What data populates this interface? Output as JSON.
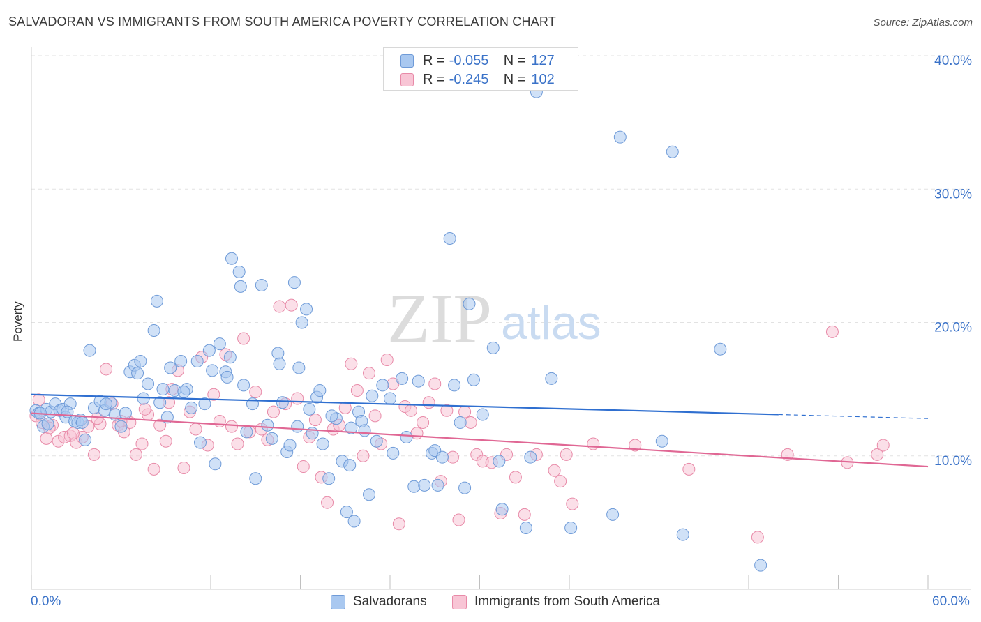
{
  "header": {
    "title": "SALVADORAN VS IMMIGRANTS FROM SOUTH AMERICA POVERTY CORRELATION CHART",
    "source": "Source: ZipAtlas.com"
  },
  "watermark": {
    "zip": "ZIP",
    "atlas": "atlas"
  },
  "legend": {
    "rows": [
      {
        "r_label": "R =",
        "r_value": "-0.055",
        "n_label": "N =",
        "n_value": "127",
        "color": "#a9c8f0",
        "border": "#6f9bd8"
      },
      {
        "r_label": "R =",
        "r_value": "-0.245",
        "n_label": "N =",
        "n_value": "102",
        "color": "#f8c5d5",
        "border": "#e88aa8"
      }
    ]
  },
  "bottom_legend": [
    {
      "label": "Salvadorans",
      "color": "#a9c8f0",
      "border": "#6f9bd8"
    },
    {
      "label": "Immigrants from South America",
      "color": "#f8c5d5",
      "border": "#e88aa8"
    }
  ],
  "chart_data": {
    "type": "scatter",
    "title": "SALVADORAN VS IMMIGRANTS FROM SOUTH AMERICA POVERTY CORRELATION CHART",
    "xlabel": "",
    "ylabel": "Poverty",
    "xlim": [
      0,
      60
    ],
    "ylim": [
      0,
      40
    ],
    "x_tick_labels": [
      "0.0%",
      "60.0%"
    ],
    "y_ticks": [
      10,
      20,
      30,
      40
    ],
    "y_tick_labels": [
      "10.0%",
      "20.0%",
      "30.0%",
      "40.0%"
    ],
    "grid": true,
    "legend_placement": "top-center",
    "series": [
      {
        "name": "Salvadorans",
        "color": "#6f9bd8",
        "fill": "#a9c8f0",
        "trend": {
          "x": [
            0,
            50,
            60
          ],
          "y": [
            14.6,
            13.1,
            12.8
          ],
          "solid_until": 50
        },
        "points": [
          [
            0.3,
            13.4
          ],
          [
            0.5,
            13.2
          ],
          [
            0.8,
            12.2
          ],
          [
            1.0,
            13.5
          ],
          [
            1.3,
            13.3
          ],
          [
            1.6,
            13.9
          ],
          [
            1.9,
            13.4
          ],
          [
            2.1,
            13.5
          ],
          [
            2.3,
            12.9
          ],
          [
            2.6,
            13.9
          ],
          [
            2.9,
            12.6
          ],
          [
            3.1,
            12.5
          ],
          [
            3.3,
            12.7
          ],
          [
            3.6,
            11.2
          ],
          [
            3.9,
            17.9
          ],
          [
            4.2,
            13.6
          ],
          [
            4.6,
            14.1
          ],
          [
            4.9,
            13.4
          ],
          [
            5.3,
            14.0
          ],
          [
            5.6,
            13.1
          ],
          [
            6.0,
            12.2
          ],
          [
            6.6,
            16.3
          ],
          [
            6.9,
            16.8
          ],
          [
            7.1,
            16.2
          ],
          [
            7.3,
            17.1
          ],
          [
            7.8,
            15.4
          ],
          [
            8.2,
            19.4
          ],
          [
            8.4,
            21.6
          ],
          [
            8.6,
            14.0
          ],
          [
            9.3,
            16.6
          ],
          [
            9.6,
            14.9
          ],
          [
            10.0,
            17.1
          ],
          [
            10.4,
            15.0
          ],
          [
            10.7,
            13.6
          ],
          [
            11.1,
            17.1
          ],
          [
            11.6,
            13.9
          ],
          [
            11.9,
            17.9
          ],
          [
            12.3,
            9.4
          ],
          [
            12.6,
            18.4
          ],
          [
            13.0,
            16.3
          ],
          [
            13.1,
            15.9
          ],
          [
            13.4,
            24.8
          ],
          [
            13.9,
            23.8
          ],
          [
            14.0,
            22.7
          ],
          [
            14.4,
            11.8
          ],
          [
            14.8,
            13.9
          ],
          [
            15.0,
            8.3
          ],
          [
            15.4,
            22.8
          ],
          [
            16.1,
            11.3
          ],
          [
            16.5,
            17.7
          ],
          [
            16.6,
            16.9
          ],
          [
            17.1,
            10.3
          ],
          [
            17.3,
            10.8
          ],
          [
            17.6,
            23.0
          ],
          [
            17.9,
            16.6
          ],
          [
            18.1,
            20.0
          ],
          [
            18.4,
            21.0
          ],
          [
            18.8,
            11.7
          ],
          [
            19.1,
            14.4
          ],
          [
            19.3,
            14.9
          ],
          [
            19.9,
            8.3
          ],
          [
            20.4,
            12.8
          ],
          [
            20.8,
            9.6
          ],
          [
            21.1,
            5.8
          ],
          [
            21.3,
            9.3
          ],
          [
            21.6,
            5.1
          ],
          [
            21.9,
            13.3
          ],
          [
            22.1,
            12.6
          ],
          [
            22.3,
            11.9
          ],
          [
            22.6,
            7.1
          ],
          [
            23.1,
            11.1
          ],
          [
            23.5,
            15.3
          ],
          [
            24.0,
            14.3
          ],
          [
            24.2,
            10.2
          ],
          [
            24.8,
            15.8
          ],
          [
            25.1,
            11.4
          ],
          [
            25.6,
            7.7
          ],
          [
            25.9,
            15.6
          ],
          [
            26.3,
            7.8
          ],
          [
            26.8,
            10.2
          ],
          [
            27.0,
            10.4
          ],
          [
            27.2,
            7.8
          ],
          [
            27.5,
            9.9
          ],
          [
            28.0,
            26.3
          ],
          [
            28.3,
            15.3
          ],
          [
            28.7,
            12.5
          ],
          [
            29.0,
            7.6
          ],
          [
            29.3,
            21.4
          ],
          [
            29.6,
            15.7
          ],
          [
            30.2,
            13.1
          ],
          [
            30.9,
            18.1
          ],
          [
            31.3,
            9.6
          ],
          [
            31.5,
            6.0
          ],
          [
            33.1,
            4.6
          ],
          [
            33.4,
            9.9
          ],
          [
            33.8,
            37.3
          ],
          [
            34.8,
            15.8
          ],
          [
            36.1,
            4.6
          ],
          [
            38.9,
            5.6
          ],
          [
            39.4,
            33.9
          ],
          [
            42.2,
            11.1
          ],
          [
            42.9,
            32.8
          ],
          [
            43.6,
            4.1
          ],
          [
            46.1,
            18.0
          ],
          [
            48.8,
            1.8
          ],
          [
            0.6,
            13.2
          ],
          [
            1.1,
            12.4
          ],
          [
            2.4,
            13.3
          ],
          [
            3.4,
            12.5
          ],
          [
            5.0,
            13.9
          ],
          [
            6.3,
            13.2
          ],
          [
            7.5,
            14.3
          ],
          [
            8.8,
            15.0
          ],
          [
            9.1,
            12.9
          ],
          [
            10.2,
            14.8
          ],
          [
            11.3,
            11.0
          ],
          [
            12.1,
            16.4
          ],
          [
            13.3,
            17.4
          ],
          [
            14.2,
            15.3
          ],
          [
            15.8,
            12.3
          ],
          [
            16.8,
            14.0
          ],
          [
            17.8,
            12.2
          ],
          [
            18.6,
            13.5
          ],
          [
            19.5,
            10.9
          ],
          [
            20.1,
            13.0
          ],
          [
            21.4,
            12.1
          ],
          [
            22.8,
            14.5
          ]
        ]
      },
      {
        "name": "Immigrants from South America",
        "color": "#e88aa8",
        "fill": "#f8c5d5",
        "trend": {
          "x": [
            0,
            60
          ],
          "y": [
            13.2,
            9.2
          ]
        },
        "points": [
          [
            0.3,
            13.0
          ],
          [
            0.7,
            12.5
          ],
          [
            1.0,
            11.3
          ],
          [
            1.4,
            12.3
          ],
          [
            1.8,
            11.1
          ],
          [
            2.2,
            11.4
          ],
          [
            2.6,
            11.5
          ],
          [
            3.0,
            11.0
          ],
          [
            3.4,
            11.4
          ],
          [
            3.8,
            12.2
          ],
          [
            4.2,
            10.1
          ],
          [
            4.6,
            12.4
          ],
          [
            5.0,
            16.5
          ],
          [
            5.4,
            13.9
          ],
          [
            5.8,
            12.3
          ],
          [
            6.2,
            11.8
          ],
          [
            6.6,
            12.5
          ],
          [
            7.0,
            10.1
          ],
          [
            7.4,
            10.9
          ],
          [
            7.8,
            13.1
          ],
          [
            8.2,
            9.0
          ],
          [
            8.6,
            12.3
          ],
          [
            9.0,
            11.1
          ],
          [
            9.4,
            15.0
          ],
          [
            9.8,
            16.4
          ],
          [
            10.2,
            9.1
          ],
          [
            10.6,
            13.3
          ],
          [
            11.0,
            12.0
          ],
          [
            11.4,
            17.4
          ],
          [
            11.8,
            10.8
          ],
          [
            12.2,
            14.6
          ],
          [
            12.6,
            12.6
          ],
          [
            13.0,
            17.6
          ],
          [
            13.4,
            12.2
          ],
          [
            13.8,
            10.9
          ],
          [
            14.2,
            18.8
          ],
          [
            14.6,
            11.8
          ],
          [
            15.0,
            14.8
          ],
          [
            15.4,
            12.0
          ],
          [
            15.8,
            11.2
          ],
          [
            16.2,
            13.3
          ],
          [
            16.6,
            21.2
          ],
          [
            17.0,
            13.9
          ],
          [
            17.4,
            21.3
          ],
          [
            17.8,
            14.3
          ],
          [
            18.2,
            9.2
          ],
          [
            18.6,
            11.4
          ],
          [
            19.0,
            12.7
          ],
          [
            19.4,
            8.4
          ],
          [
            19.8,
            6.5
          ],
          [
            20.2,
            12.0
          ],
          [
            20.6,
            12.3
          ],
          [
            21.0,
            13.6
          ],
          [
            21.4,
            16.9
          ],
          [
            21.8,
            14.9
          ],
          [
            22.2,
            10.0
          ],
          [
            22.6,
            16.2
          ],
          [
            23.0,
            13.0
          ],
          [
            23.4,
            10.9
          ],
          [
            23.8,
            17.2
          ],
          [
            24.2,
            15.4
          ],
          [
            24.6,
            4.9
          ],
          [
            25.0,
            13.7
          ],
          [
            25.4,
            13.4
          ],
          [
            25.8,
            11.7
          ],
          [
            26.2,
            12.5
          ],
          [
            26.6,
            14.0
          ],
          [
            27.0,
            15.4
          ],
          [
            27.4,
            8.1
          ],
          [
            27.8,
            13.4
          ],
          [
            28.2,
            9.9
          ],
          [
            28.6,
            5.2
          ],
          [
            29.0,
            13.3
          ],
          [
            29.4,
            12.5
          ],
          [
            29.8,
            10.1
          ],
          [
            30.2,
            9.6
          ],
          [
            30.8,
            9.5
          ],
          [
            31.4,
            5.7
          ],
          [
            31.8,
            10.1
          ],
          [
            32.4,
            8.4
          ],
          [
            33.0,
            5.6
          ],
          [
            33.8,
            10.1
          ],
          [
            35.0,
            8.9
          ],
          [
            35.4,
            8.1
          ],
          [
            35.8,
            10.1
          ],
          [
            36.2,
            6.4
          ],
          [
            37.6,
            10.9
          ],
          [
            40.4,
            10.8
          ],
          [
            44.0,
            9.0
          ],
          [
            48.6,
            3.9
          ],
          [
            50.6,
            10.1
          ],
          [
            53.6,
            19.3
          ],
          [
            54.6,
            9.5
          ],
          [
            56.6,
            10.1
          ],
          [
            57.0,
            10.8
          ],
          [
            0.5,
            14.2
          ],
          [
            1.2,
            12.1
          ],
          [
            2.8,
            11.7
          ],
          [
            4.4,
            12.8
          ],
          [
            6.0,
            12.6
          ],
          [
            7.6,
            13.5
          ],
          [
            9.2,
            14.0
          ]
        ]
      }
    ]
  }
}
